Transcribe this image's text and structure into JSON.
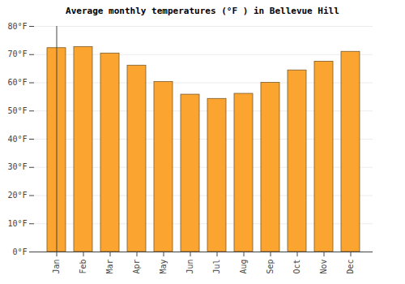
{
  "chart_data": {
    "type": "bar",
    "title": "Average monthly temperatures (°F ) in Bellevue Hill",
    "categories": [
      "Jan",
      "Feb",
      "Mar",
      "Apr",
      "May",
      "Jun",
      "Jul",
      "Aug",
      "Sep",
      "Oct",
      "Nov",
      "Dec"
    ],
    "values": [
      72.3,
      72.7,
      70.4,
      66.1,
      60.3,
      55.8,
      54.3,
      56.1,
      60.0,
      64.4,
      67.5,
      71.0
    ],
    "color": "#fba42f",
    "ylim": [
      0,
      80
    ],
    "yticks": [
      {
        "value": 0,
        "label": "0°F"
      },
      {
        "value": 10,
        "label": "10°F"
      },
      {
        "value": 20,
        "label": "20°F"
      },
      {
        "value": 30,
        "label": "30°F"
      },
      {
        "value": 40,
        "label": "40°F"
      },
      {
        "value": 50,
        "label": "50°F"
      },
      {
        "value": 60,
        "label": "60°F"
      },
      {
        "value": 70,
        "label": "70°F"
      },
      {
        "value": 80,
        "label": "80°F"
      }
    ],
    "grid": true
  }
}
